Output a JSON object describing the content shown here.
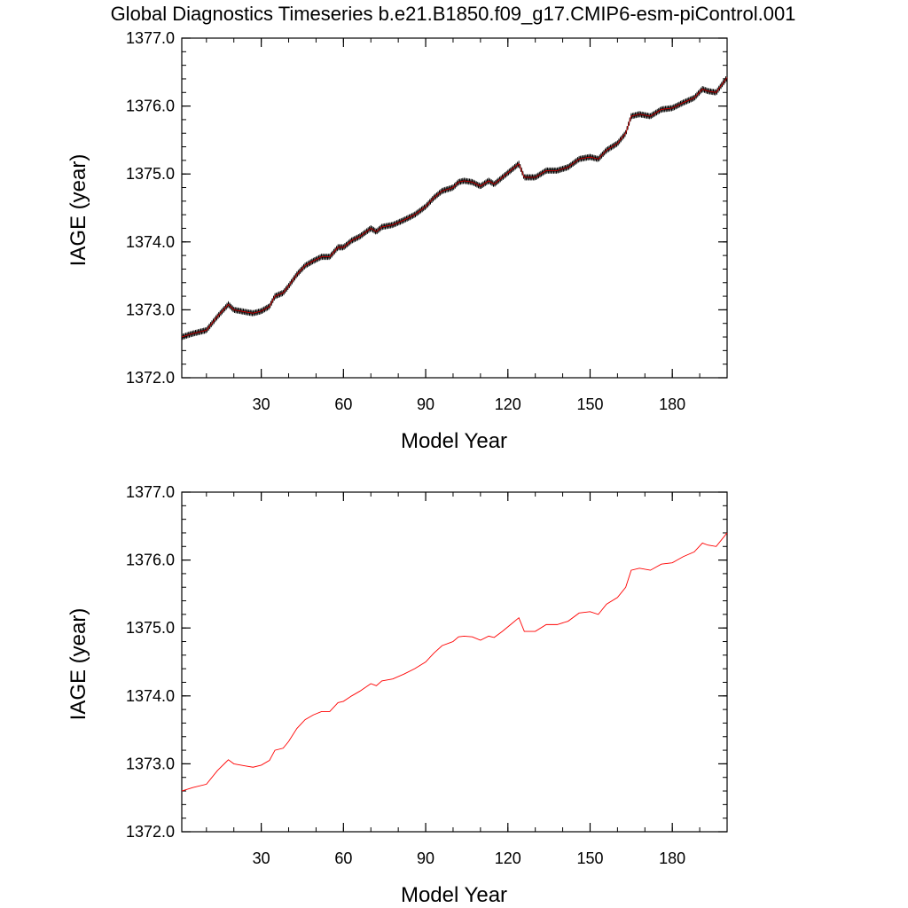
{
  "title": "Global Diagnostics Timeseries b.e21.B1850.f09_g17.CMIP6-esm-piControl.001",
  "colors": {
    "monthly_line": "#000000",
    "annual_line": "#ff0000",
    "axis": "#000000",
    "background": "#ffffff"
  },
  "chart_data": [
    {
      "type": "line",
      "panel": "top",
      "xlabel": "Model Year",
      "ylabel": "IAGE (year)",
      "xlim": [
        1,
        200
      ],
      "ylim": [
        1372.0,
        1377.0
      ],
      "x_ticks": [
        30,
        60,
        90,
        120,
        150,
        180
      ],
      "x_tick_labels": [
        "30",
        "60",
        "90",
        "120",
        "150",
        "180"
      ],
      "y_ticks": [
        1372.0,
        1373.0,
        1374.0,
        1375.0,
        1376.0,
        1377.0
      ],
      "y_tick_labels": [
        "1372.0",
        "1373.0",
        "1374.0",
        "1375.0",
        "1376.0",
        "1377.0"
      ],
      "grid": false,
      "legend": "none",
      "series": [
        {
          "style": "monthly timeseries with seasonal oscillation (amplitude ~0.05 yr)",
          "color": "#000000",
          "x": [
            1,
            5,
            10,
            14,
            18,
            20,
            24,
            27,
            30,
            33,
            35,
            38,
            40,
            43,
            46,
            49,
            52,
            55,
            58,
            60,
            63,
            66,
            70,
            72,
            74,
            78,
            82,
            86,
            90,
            93,
            96,
            100,
            102,
            104,
            107,
            110,
            113,
            115,
            118,
            121,
            124,
            126,
            130,
            134,
            138,
            142,
            146,
            150,
            153,
            156,
            160,
            163,
            165,
            168,
            172,
            176,
            180,
            184,
            188,
            191,
            193,
            196,
            200
          ],
          "y": [
            1372.6,
            1372.65,
            1372.7,
            1372.9,
            1373.08,
            1373.0,
            1372.97,
            1372.95,
            1372.98,
            1373.05,
            1373.2,
            1373.25,
            1373.35,
            1373.52,
            1373.65,
            1373.72,
            1373.78,
            1373.78,
            1373.92,
            1373.92,
            1374.02,
            1374.08,
            1374.2,
            1374.15,
            1374.22,
            1374.25,
            1374.32,
            1374.4,
            1374.52,
            1374.65,
            1374.75,
            1374.8,
            1374.88,
            1374.9,
            1374.88,
            1374.82,
            1374.9,
            1374.85,
            1374.95,
            1375.05,
            1375.15,
            1374.95,
            1374.95,
            1375.05,
            1375.05,
            1375.1,
            1375.22,
            1375.25,
            1375.22,
            1375.35,
            1375.45,
            1375.6,
            1375.85,
            1375.88,
            1375.85,
            1375.95,
            1375.97,
            1376.05,
            1376.12,
            1376.25,
            1376.22,
            1376.2,
            1376.42
          ]
        }
      ]
    },
    {
      "type": "line",
      "panel": "bottom",
      "xlabel": "Model Year",
      "ylabel": "IAGE (year)",
      "xlim": [
        1,
        200
      ],
      "ylim": [
        1372.0,
        1377.0
      ],
      "x_ticks": [
        30,
        60,
        90,
        120,
        150,
        180
      ],
      "x_tick_labels": [
        "30",
        "60",
        "90",
        "120",
        "150",
        "180"
      ],
      "y_ticks": [
        1372.0,
        1373.0,
        1374.0,
        1375.0,
        1376.0,
        1377.0
      ],
      "y_tick_labels": [
        "1372.0",
        "1373.0",
        "1374.0",
        "1375.0",
        "1376.0",
        "1377.0"
      ],
      "grid": false,
      "legend": "none",
      "series": [
        {
          "style": "annual mean",
          "color": "#ff0000",
          "x": [
            1,
            5,
            10,
            14,
            18,
            20,
            24,
            27,
            30,
            33,
            35,
            38,
            40,
            43,
            46,
            49,
            52,
            55,
            58,
            60,
            63,
            66,
            70,
            72,
            74,
            78,
            82,
            86,
            90,
            93,
            96,
            100,
            102,
            104,
            107,
            110,
            113,
            115,
            118,
            121,
            124,
            126,
            130,
            134,
            138,
            142,
            146,
            150,
            153,
            156,
            160,
            163,
            165,
            168,
            172,
            176,
            180,
            184,
            188,
            191,
            193,
            196,
            200
          ],
          "y": [
            1372.6,
            1372.65,
            1372.7,
            1372.9,
            1373.06,
            1373.0,
            1372.97,
            1372.95,
            1372.98,
            1373.05,
            1373.2,
            1373.23,
            1373.33,
            1373.52,
            1373.65,
            1373.72,
            1373.77,
            1373.77,
            1373.9,
            1373.92,
            1374.0,
            1374.07,
            1374.18,
            1374.15,
            1374.22,
            1374.25,
            1374.32,
            1374.4,
            1374.5,
            1374.63,
            1374.74,
            1374.8,
            1374.87,
            1374.88,
            1374.87,
            1374.82,
            1374.88,
            1374.86,
            1374.95,
            1375.05,
            1375.15,
            1374.95,
            1374.95,
            1375.05,
            1375.05,
            1375.1,
            1375.22,
            1375.24,
            1375.2,
            1375.35,
            1375.45,
            1375.6,
            1375.85,
            1375.88,
            1375.85,
            1375.94,
            1375.96,
            1376.05,
            1376.12,
            1376.25,
            1376.22,
            1376.2,
            1376.4
          ]
        }
      ]
    }
  ]
}
